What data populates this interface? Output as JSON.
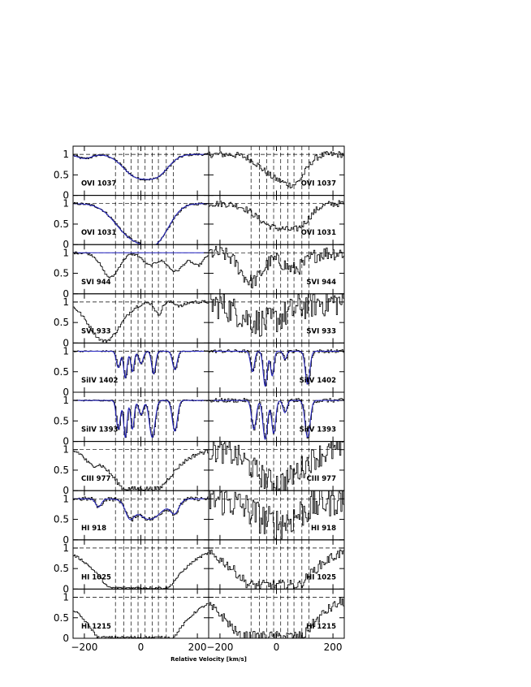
{
  "chart_data": {
    "type": "line",
    "xlabel": "Relative Velocity [km/s]",
    "xlim": [
      -240,
      240
    ],
    "ylim": [
      0,
      1.2
    ],
    "x_ticks": [
      -200,
      0,
      200
    ],
    "x_tick_labels": [
      "−200",
      "0",
      "200"
    ],
    "y_ticks": [
      0,
      0.5,
      1
    ],
    "y_tick_labels": [
      "0",
      "0.5",
      "1"
    ],
    "component_velocities": [
      -90,
      -60,
      -35,
      -10,
      15,
      40,
      62,
      90,
      115
    ],
    "continuum_level": 1,
    "colors": {
      "data": "#000000",
      "model": "#2020c0",
      "guide": "#000000"
    },
    "panels": [
      {
        "label": "OVI  1037",
        "side": "left",
        "model": "yes"
      },
      {
        "label": "OVI  1037",
        "side": "right",
        "model": "no"
      },
      {
        "label": "OVI  1031",
        "side": "left",
        "model": "yes"
      },
      {
        "label": "OVI  1031",
        "side": "right",
        "model": "no"
      },
      {
        "label": "SVI  944",
        "side": "left",
        "model": "flat"
      },
      {
        "label": "SVI  944",
        "side": "right",
        "model": "no"
      },
      {
        "label": "SVI  933",
        "side": "left",
        "model": "no"
      },
      {
        "label": "SVI  933",
        "side": "right",
        "model": "no"
      },
      {
        "label": "SiIV  1402",
        "side": "left",
        "model": "yes"
      },
      {
        "label": "SiIV  1402",
        "side": "right",
        "model": "yes"
      },
      {
        "label": "SiIV  1393",
        "side": "left",
        "model": "yes"
      },
      {
        "label": "SiIV  1393",
        "side": "right",
        "model": "yes"
      },
      {
        "label": "CIII  977",
        "side": "left",
        "model": "no"
      },
      {
        "label": "CIII  977",
        "side": "right",
        "model": "no"
      },
      {
        "label": "HI  918",
        "side": "left",
        "model": "yes"
      },
      {
        "label": "HI  918",
        "side": "right",
        "model": "no"
      },
      {
        "label": "HI  1025",
        "side": "left",
        "model": "no"
      },
      {
        "label": "HI  1025",
        "side": "right",
        "model": "no"
      },
      {
        "label": "HI  1215",
        "side": "left",
        "model": "no"
      },
      {
        "label": "HI  1215",
        "side": "right",
        "model": "no"
      }
    ]
  }
}
